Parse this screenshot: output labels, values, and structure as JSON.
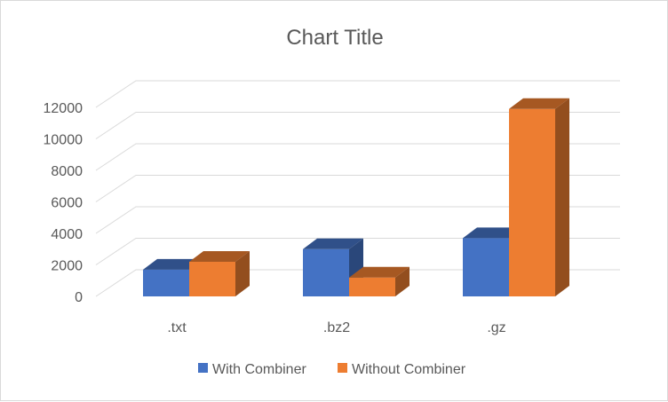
{
  "chart_data": {
    "type": "bar",
    "title": "Chart Title",
    "categories": [
      ".txt",
      ".bz2",
      ".gz"
    ],
    "series": [
      {
        "name": "With Combiner",
        "values": [
          1700,
          3000,
          3700
        ],
        "color": "#4472c4"
      },
      {
        "name": "Without Combiner",
        "values": [
          2200,
          1200,
          11900
        ],
        "color": "#ed7d31"
      }
    ],
    "ylim": [
      0,
      12000
    ],
    "yticks": [
      0,
      2000,
      4000,
      6000,
      8000,
      10000,
      12000
    ],
    "grid": true,
    "legend_position": "bottom",
    "style": "3d-clustered-column"
  }
}
